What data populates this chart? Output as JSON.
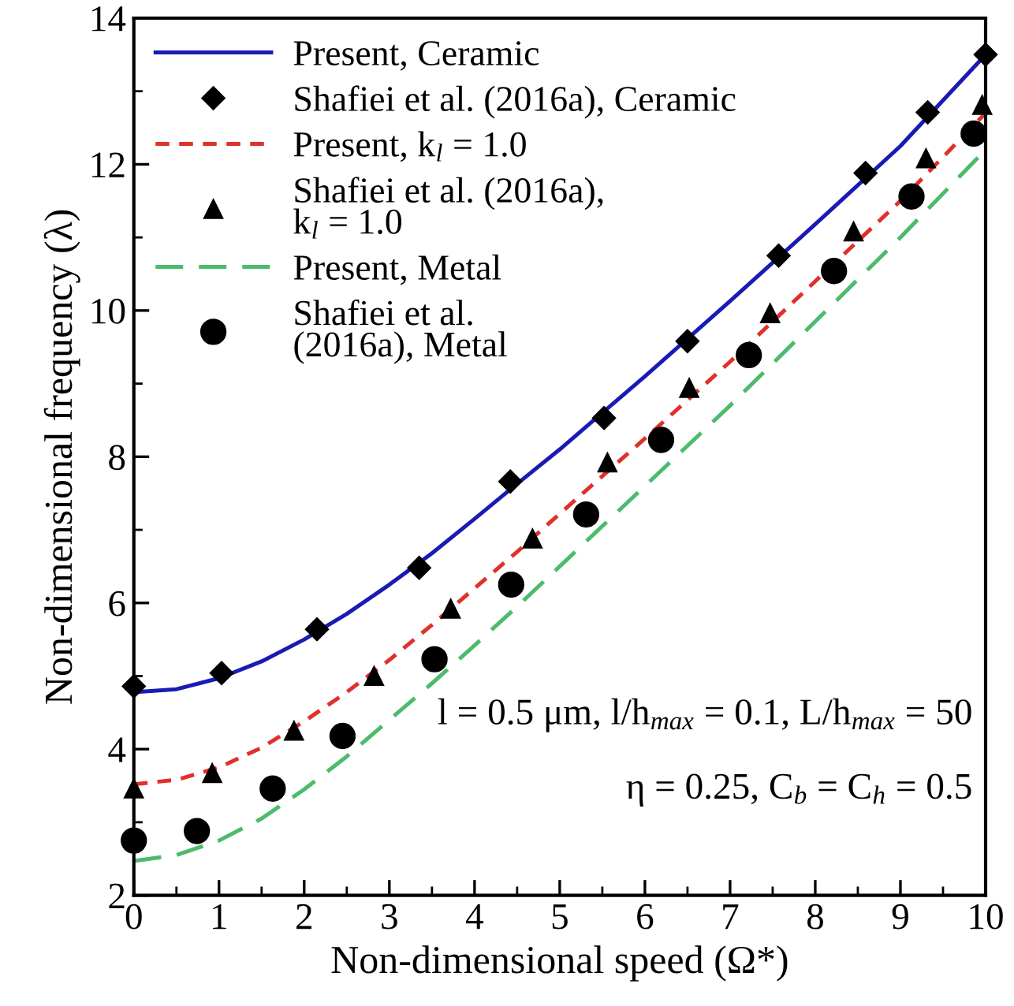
{
  "chart_data": {
    "type": "line",
    "xlabel": "Non-dimensional speed (Ω*)",
    "ylabel": "Non-dimensional frequency (λ)",
    "xlim": [
      0,
      10
    ],
    "ylim": [
      2,
      14
    ],
    "xticks": [
      0,
      1,
      2,
      3,
      4,
      5,
      6,
      7,
      8,
      9,
      10
    ],
    "yticks": [
      2,
      4,
      6,
      8,
      10,
      12,
      14
    ],
    "grid": false,
    "legend": "top left",
    "annotations": [
      "l = 0.5 μm, l/h$_{max}$ = 0.1, L/h$_{max}$ = 50",
      "η = 0.25, C$_{b}$ = C$_{h}$ = 0.5"
    ],
    "series": [
      {
        "name": "Present, Ceramic",
        "line_style": "solid",
        "marker": "none",
        "color": "#1a1ab4",
        "x": [
          0,
          0.5,
          1,
          1.5,
          2,
          2.5,
          3,
          3.5,
          4,
          4.5,
          5,
          6,
          7,
          8,
          9,
          10
        ],
        "values": [
          4.78,
          4.82,
          4.97,
          5.2,
          5.5,
          5.85,
          6.25,
          6.68,
          7.15,
          7.63,
          8.1,
          9.1,
          10.13,
          11.18,
          12.25,
          13.5
        ]
      },
      {
        "name": "Shafiei et al. (2016a), Ceramic",
        "type": "scatter",
        "marker": "diamond",
        "color": "#000000",
        "x": [
          0,
          1.03,
          2.15,
          3.35,
          4.42,
          5.52,
          6.5,
          7.57,
          8.59,
          9.32,
          10
        ],
        "values": [
          4.86,
          5.04,
          5.64,
          6.48,
          7.66,
          8.53,
          9.58,
          10.75,
          11.88,
          12.71,
          13.5
        ]
      },
      {
        "name": "Present, k$_{l}$ = 1.0",
        "line_style": "dashed",
        "marker": "none",
        "color": "#e0302a",
        "x": [
          0,
          0.5,
          1,
          1.5,
          2,
          2.5,
          3,
          3.5,
          4,
          4.5,
          5,
          6,
          7,
          8,
          9,
          10
        ],
        "values": [
          3.52,
          3.58,
          3.75,
          4.02,
          4.38,
          4.78,
          5.22,
          5.7,
          6.2,
          6.7,
          7.22,
          8.25,
          9.3,
          10.4,
          11.5,
          12.7
        ]
      },
      {
        "name": "Shafiei et al. (2016a),\nk$_{l}$ = 1.0",
        "type": "scatter",
        "marker": "triangle",
        "color": "#000000",
        "x": [
          0,
          0.92,
          1.88,
          2.82,
          3.72,
          4.68,
          5.56,
          6.52,
          7.47,
          8.45,
          9.3,
          9.96
        ],
        "values": [
          3.46,
          3.67,
          4.25,
          5.0,
          5.92,
          6.88,
          7.92,
          8.94,
          9.96,
          11.08,
          12.08,
          12.81
        ]
      },
      {
        "name": "Present, Metal",
        "line_style": "dashed",
        "marker": "none",
        "color": "#4cbb6c",
        "x": [
          0,
          0.5,
          1,
          1.5,
          2,
          2.5,
          3,
          3.5,
          4,
          4.5,
          5,
          6,
          7,
          8,
          9,
          10
        ],
        "values": [
          2.47,
          2.55,
          2.75,
          3.05,
          3.45,
          3.9,
          4.4,
          4.9,
          5.42,
          5.95,
          6.5,
          7.6,
          8.7,
          9.85,
          11.0,
          12.2
        ]
      },
      {
        "name": "Shafiei et al.\n(2016a), Metal",
        "type": "scatter",
        "marker": "circle",
        "color": "#000000",
        "x": [
          0,
          0.74,
          1.63,
          2.45,
          3.53,
          4.43,
          5.31,
          6.19,
          7.22,
          8.22,
          9.13,
          9.86
        ],
        "values": [
          2.75,
          2.88,
          3.46,
          4.18,
          5.23,
          6.25,
          7.21,
          8.23,
          9.39,
          10.54,
          11.56,
          12.42
        ]
      }
    ]
  }
}
